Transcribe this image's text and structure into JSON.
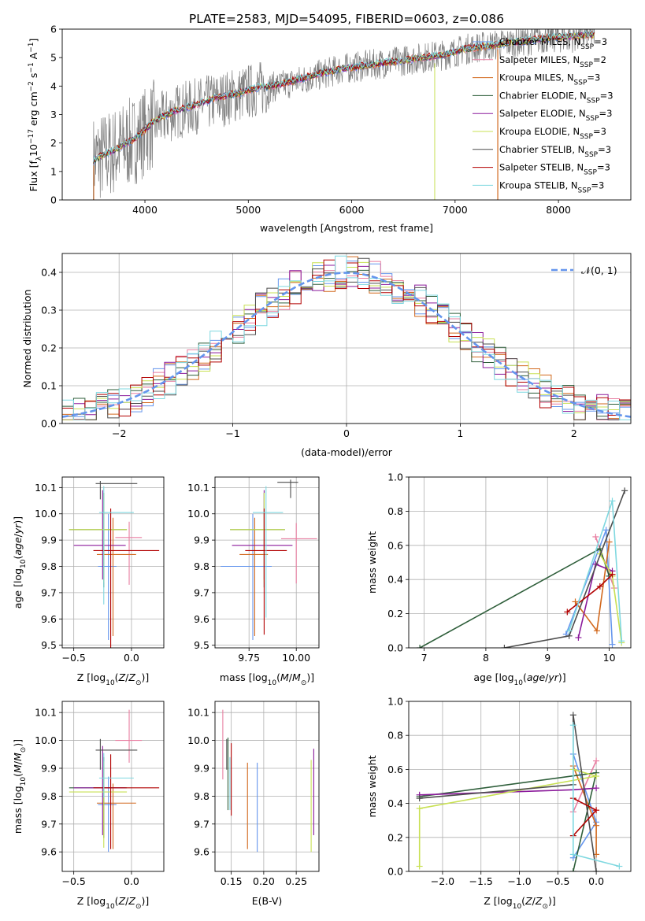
{
  "figure": {
    "title": "PLATE=2583, MJD=54095, FIBERID=0603, z=0.086"
  },
  "colors": {
    "Chabrier MILES": "#6495ed",
    "Salpeter MILES": "#e87ea1",
    "Kroupa MILES": "#d2691e",
    "Chabrier ELODIE": "#2e5e3a",
    "Salpeter ELODIE": "#8b1a9b",
    "Kroupa ELODIE": "#c8e053",
    "Chabrier STELIB": "#4d4d4d",
    "Salpeter STELIB": "#b20000",
    "Kroupa STELIB": "#7fd8e0",
    "data": "#808080"
  },
  "chart_data": [
    {
      "id": "spectrum",
      "type": "line",
      "xlabel": "wavelength [Angstrom, rest frame]",
      "ylabel": "Flux [f_λ10^{-17} erg cm^{-2} s^{-1} A^{-1}]",
      "ylabel_parts": [
        "Flux [f",
        "λ",
        "10",
        "−17",
        " erg cm",
        "−2",
        " s",
        "−1",
        " A",
        "−1",
        "]"
      ],
      "xlim": [
        3200,
        8700
      ],
      "ylim": [
        0,
        6
      ],
      "xticks": [
        4000,
        5000,
        6000,
        7000,
        8000
      ],
      "yticks": [
        0,
        1,
        2,
        3,
        4,
        5,
        6
      ],
      "grid": false,
      "legend_position": "right",
      "legend": [
        {
          "base": "Chabrier MILES, N",
          "sub": "SSP",
          "tail": "=3"
        },
        {
          "base": "Salpeter MILES, N",
          "sub": "SSP",
          "tail": "=2"
        },
        {
          "base": "Kroupa MILES, N",
          "sub": "SSP",
          "tail": "=3"
        },
        {
          "base": "Chabrier ELODIE, N",
          "sub": "SSP",
          "tail": "=3"
        },
        {
          "base": "Salpeter ELODIE, N",
          "sub": "SSP",
          "tail": "=3"
        },
        {
          "base": "Kroupa ELODIE, N",
          "sub": "SSP",
          "tail": "=3"
        },
        {
          "base": "Chabrier STELIB, N",
          "sub": "SSP",
          "tail": "=3"
        },
        {
          "base": "Salpeter STELIB, N",
          "sub": "SSP",
          "tail": "=3"
        },
        {
          "base": "Kroupa STELIB, N",
          "sub": "SSP",
          "tail": "=3"
        }
      ],
      "data_spectrum": {
        "x": [
          3500,
          3700,
          3900,
          4100,
          4300,
          4500,
          4700,
          4900,
          5100,
          5300,
          5500,
          5700,
          5900,
          6100,
          6300,
          6500,
          6700,
          6900,
          7100,
          7300,
          7500,
          7700,
          7900,
          8100,
          8300
        ],
        "y": [
          1.4,
          1.7,
          2.1,
          2.7,
          3.1,
          3.3,
          3.5,
          3.7,
          3.9,
          4.0,
          4.2,
          4.4,
          4.6,
          4.7,
          4.8,
          4.9,
          5.0,
          5.1,
          5.3,
          5.4,
          5.5,
          5.6,
          5.7,
          5.7,
          5.8
        ]
      },
      "model_spectrum": {
        "x": [
          3500,
          3700,
          3900,
          4100,
          4300,
          4500,
          4700,
          4900,
          5100,
          5300,
          5500,
          5700,
          5900,
          6100,
          6300,
          6500,
          6700,
          6900,
          7100,
          7300,
          7500,
          7700,
          7900,
          8100,
          8300
        ],
        "y": [
          1.4,
          1.75,
          2.15,
          2.8,
          3.15,
          3.35,
          3.6,
          3.75,
          3.95,
          4.05,
          4.25,
          4.45,
          4.6,
          4.7,
          4.8,
          4.9,
          5.0,
          5.1,
          5.3,
          5.4,
          5.5,
          5.6,
          5.7,
          5.75,
          5.8
        ]
      }
    },
    {
      "id": "residuals",
      "type": "line",
      "xlabel": "(data-model)/error",
      "ylabel": "Normed distribution",
      "xlim": [
        -2.5,
        2.5
      ],
      "ylim": [
        0,
        0.45
      ],
      "xticks": [
        -2,
        -1,
        0,
        1,
        2
      ],
      "yticks": [
        0.0,
        0.1,
        0.2,
        0.3,
        0.4
      ],
      "grid": true,
      "legend_position": "top-right",
      "legend": [
        "𝒩(0, 1)"
      ],
      "bin_width": 0.1
    },
    {
      "id": "age_vs_Z",
      "type": "scatter",
      "xlabel": "Z [log10(Z/Z⊙)]",
      "ylabel": "age  [log10(age/yr)]",
      "xlim": [
        -0.6,
        0.28
      ],
      "ylim": [
        9.49,
        10.14
      ],
      "xticks": [
        -0.5,
        0.0
      ],
      "yticks": [
        9.5,
        9.6,
        9.7,
        9.8,
        9.9,
        10.0,
        10.1
      ],
      "grid": true,
      "points": [
        {
          "model": "Chabrier MILES",
          "x": -0.2,
          "y": 9.8,
          "xerr": [
            0.09,
            0.07
          ],
          "yerr": [
            0.28,
            0.2
          ]
        },
        {
          "model": "Salpeter MILES",
          "x": -0.02,
          "y": 9.91,
          "xerr": [
            0.12,
            0.11
          ],
          "yerr": [
            0.18,
            0.06
          ]
        },
        {
          "model": "Kroupa MILES",
          "x": -0.16,
          "y": 9.845,
          "xerr": [
            0.14,
            0.2
          ],
          "yerr": [
            0.31,
            0.14
          ]
        },
        {
          "model": "Chabrier ELODIE",
          "x": -0.24,
          "y": 9.94,
          "xerr": [
            0.3,
            0.2
          ],
          "yerr": [
            0.22,
            0.14
          ]
        },
        {
          "model": "Salpeter ELODIE",
          "x": -0.25,
          "y": 9.88,
          "xerr": [
            0.25,
            0.2
          ],
          "yerr": [
            0.13,
            0.21
          ]
        },
        {
          "model": "Kroupa ELODIE",
          "x": -0.24,
          "y": 9.94,
          "xerr": [
            0.3,
            0.2
          ],
          "yerr": [
            0.2,
            0.14
          ]
        },
        {
          "model": "Chabrier STELIB",
          "x": -0.27,
          "y": 10.115,
          "xerr": [
            0.04,
            0.32
          ],
          "yerr": [
            0.06,
            0.01
          ]
        },
        {
          "model": "Salpeter STELIB",
          "x": -0.18,
          "y": 9.86,
          "xerr": [
            0.15,
            0.42
          ],
          "yerr": [
            0.38,
            0.16
          ]
        },
        {
          "model": "Kroupa STELIB",
          "x": -0.24,
          "y": 10.005,
          "xerr": [
            0.04,
            0.26
          ],
          "yerr": [
            0.35,
            0.1
          ]
        }
      ]
    },
    {
      "id": "age_vs_mass",
      "type": "scatter",
      "xlabel": "mass [log10(M/M⊙)]",
      "ylabel": "",
      "xlim": [
        9.57,
        10.12
      ],
      "ylim": [
        9.49,
        10.14
      ],
      "xticks": [
        9.75,
        10.0
      ],
      "yticks": [
        9.5,
        9.6,
        9.7,
        9.8,
        9.9,
        10.0,
        10.1
      ],
      "grid": true,
      "points": [
        {
          "model": "Chabrier MILES",
          "x": 9.77,
          "y": 9.8,
          "xerr": [
            0.17,
            0.1
          ],
          "yerr": [
            0.28,
            0.2
          ]
        },
        {
          "model": "Salpeter MILES",
          "x": 10.0,
          "y": 9.905,
          "xerr": [
            0.08,
            0.11
          ],
          "yerr": [
            0.17,
            0.06
          ]
        },
        {
          "model": "Kroupa MILES",
          "x": 9.78,
          "y": 9.845,
          "xerr": [
            0.08,
            0.07
          ],
          "yerr": [
            0.31,
            0.14
          ]
        },
        {
          "model": "Chabrier ELODIE",
          "x": 9.83,
          "y": 9.94,
          "xerr": [
            0.18,
            0.11
          ],
          "yerr": [
            0.22,
            0.14
          ]
        },
        {
          "model": "Salpeter ELODIE",
          "x": 9.83,
          "y": 9.88,
          "xerr": [
            0.17,
            0.15
          ],
          "yerr": [
            0.13,
            0.21
          ]
        },
        {
          "model": "Kroupa ELODIE",
          "x": 9.83,
          "y": 9.94,
          "xerr": [
            0.18,
            0.11
          ],
          "yerr": [
            0.2,
            0.14
          ]
        },
        {
          "model": "Chabrier STELIB",
          "x": 9.97,
          "y": 10.12,
          "xerr": [
            0.07,
            0.04
          ],
          "yerr": [
            0.06,
            0.01
          ]
        },
        {
          "model": "Salpeter STELIB",
          "x": 9.83,
          "y": 9.86,
          "xerr": [
            0.1,
            0.12
          ],
          "yerr": [
            0.32,
            0.16
          ]
        },
        {
          "model": "Kroupa STELIB",
          "x": 9.84,
          "y": 10.005,
          "xerr": [
            0.07,
            0.09
          ],
          "yerr": [
            0.4,
            0.1
          ]
        }
      ]
    },
    {
      "id": "weight_vs_age",
      "type": "line",
      "xlabel": "age  [log10(age/yr)]",
      "ylabel": "mass weight",
      "xlim": [
        6.75,
        10.35
      ],
      "ylim": [
        0,
        1.0
      ],
      "xticks": [
        7,
        8,
        9,
        10
      ],
      "yticks": [
        0.0,
        0.2,
        0.4,
        0.6,
        0.8,
        1.0
      ],
      "grid": true,
      "series": [
        {
          "model": "Chabrier MILES",
          "x": [
            9.3,
            9.95,
            10.05
          ],
          "y": [
            0.08,
            0.69,
            0.02
          ]
        },
        {
          "model": "Salpeter MILES",
          "x": [
            9.78,
            10.08
          ],
          "y": [
            0.65,
            0.35
          ]
        },
        {
          "model": "Kroupa MILES",
          "x": [
            9.45,
            9.8,
            10.0
          ],
          "y": [
            0.27,
            0.1,
            0.62
          ]
        },
        {
          "model": "Chabrier ELODIE",
          "x": [
            6.93,
            9.85,
            10.0
          ],
          "y": [
            0.0,
            0.58,
            0.42
          ]
        },
        {
          "model": "Salpeter ELODIE",
          "x": [
            9.5,
            9.78,
            10.05
          ],
          "y": [
            0.06,
            0.49,
            0.45
          ]
        },
        {
          "model": "Kroupa ELODIE",
          "x": [
            9.85,
            10.05,
            10.2
          ],
          "y": [
            0.55,
            0.42,
            0.03
          ]
        },
        {
          "model": "Chabrier STELIB",
          "x": [
            8.3,
            9.35,
            10.25
          ],
          "y": [
            0.0,
            0.07,
            0.92
          ]
        },
        {
          "model": "Salpeter STELIB",
          "x": [
            9.32,
            9.85,
            10.05
          ],
          "y": [
            0.21,
            0.36,
            0.43
          ]
        },
        {
          "model": "Kroupa STELIB",
          "x": [
            9.35,
            10.05,
            10.2
          ],
          "y": [
            0.1,
            0.86,
            0.04
          ]
        }
      ]
    },
    {
      "id": "mass_vs_Z",
      "type": "scatter",
      "xlabel": "Z [log10(Z/Z⊙)]",
      "ylabel": "mass [log10(M/M⊙)]",
      "xlim": [
        -0.6,
        0.28
      ],
      "ylim": [
        9.53,
        10.14
      ],
      "xticks": [
        -0.5,
        0.0
      ],
      "yticks": [
        9.6,
        9.7,
        9.8,
        9.9,
        10.0,
        10.1
      ],
      "grid": true,
      "points": [
        {
          "model": "Chabrier MILES",
          "x": -0.2,
          "y": 9.77,
          "xerr": [
            0.09,
            0.07
          ],
          "yerr": [
            0.17,
            0.1
          ]
        },
        {
          "model": "Salpeter MILES",
          "x": -0.02,
          "y": 10.0,
          "xerr": [
            0.12,
            0.11
          ],
          "yerr": [
            0.08,
            0.11
          ]
        },
        {
          "model": "Kroupa MILES",
          "x": -0.16,
          "y": 9.775,
          "xerr": [
            0.14,
            0.2
          ],
          "yerr": [
            0.165,
            0.07
          ]
        },
        {
          "model": "Chabrier ELODIE",
          "x": -0.24,
          "y": 9.83,
          "xerr": [
            0.3,
            0.2
          ],
          "yerr": [
            0.18,
            0.11
          ]
        },
        {
          "model": "Salpeter ELODIE",
          "x": -0.25,
          "y": 9.83,
          "xerr": [
            0.25,
            0.2
          ],
          "yerr": [
            0.17,
            0.15
          ]
        },
        {
          "model": "Kroupa ELODIE",
          "x": -0.24,
          "y": 9.815,
          "xerr": [
            0.3,
            0.2
          ],
          "yerr": [
            0.2,
            0.11
          ]
        },
        {
          "model": "Chabrier STELIB",
          "x": -0.27,
          "y": 9.965,
          "xerr": [
            0.04,
            0.32
          ],
          "yerr": [
            0.07,
            0.04
          ]
        },
        {
          "model": "Salpeter STELIB",
          "x": -0.18,
          "y": 9.83,
          "xerr": [
            0.15,
            0.42
          ],
          "yerr": [
            0.22,
            0.12
          ]
        },
        {
          "model": "Kroupa STELIB",
          "x": -0.24,
          "y": 9.865,
          "xerr": [
            0.04,
            0.26
          ],
          "yerr": [
            0.07,
            0.09
          ]
        }
      ]
    },
    {
      "id": "mass_vs_EBV",
      "type": "scatter",
      "xlabel": "E(B-V)",
      "ylabel": "",
      "xlim": [
        0.125,
        0.285
      ],
      "ylim": [
        9.53,
        10.14
      ],
      "xticks": [
        0.15,
        0.2,
        0.25
      ],
      "yticks": [
        9.6,
        9.7,
        9.8,
        9.9,
        10.0,
        10.1
      ],
      "grid": true,
      "points": [
        {
          "model": "Chabrier MILES",
          "x": 0.19,
          "y": 9.77,
          "yerr": [
            0.17,
            0.15
          ]
        },
        {
          "model": "Salpeter MILES",
          "x": 0.137,
          "y": 9.98,
          "yerr": [
            0.12,
            0.13
          ]
        },
        {
          "model": "Kroupa MILES",
          "x": 0.175,
          "y": 9.77,
          "yerr": [
            0.16,
            0.15
          ]
        },
        {
          "model": "Chabrier ELODIE",
          "x": 0.145,
          "y": 9.87,
          "yerr": [
            0.12,
            0.14
          ]
        },
        {
          "model": "Salpeter ELODIE",
          "x": 0.277,
          "y": 9.83,
          "yerr": [
            0.17,
            0.14
          ]
        },
        {
          "model": "Kroupa ELODIE",
          "x": 0.273,
          "y": 9.8,
          "yerr": [
            0.2,
            0.13
          ]
        },
        {
          "model": "Chabrier STELIB",
          "x": 0.143,
          "y": 9.965,
          "yerr": [
            0.07,
            0.04
          ]
        },
        {
          "model": "Salpeter STELIB",
          "x": 0.15,
          "y": 9.84,
          "yerr": [
            0.11,
            0.15
          ]
        },
        {
          "model": "Kroupa STELIB",
          "x": 0.148,
          "y": 9.85,
          "yerr": [
            0.1,
            0.09
          ]
        }
      ]
    },
    {
      "id": "weight_vs_Z",
      "type": "line",
      "xlabel": "Z [log10(Z/Z⊙)]",
      "ylabel": "mass weight",
      "xlim": [
        -2.44,
        0.45
      ],
      "ylim": [
        0,
        1.0
      ],
      "xticks": [
        -2.0,
        -1.5,
        -1.0,
        -0.5,
        0.0
      ],
      "yticks": [
        0.0,
        0.2,
        0.4,
        0.6,
        0.8,
        1.0
      ],
      "grid": true,
      "series": [
        {
          "model": "Chabrier MILES",
          "x": [
            -0.3,
            0.0,
            -0.3
          ],
          "y": [
            0.69,
            0.29,
            0.08
          ]
        },
        {
          "model": "Salpeter MILES",
          "x": [
            -0.3,
            0.0
          ],
          "y": [
            0.35,
            0.65
          ]
        },
        {
          "model": "Kroupa MILES",
          "x": [
            -0.3,
            0.0,
            0.0
          ],
          "y": [
            0.62,
            0.27,
            0.1
          ]
        },
        {
          "model": "Chabrier ELODIE",
          "x": [
            -2.3,
            0.0,
            -0.3
          ],
          "y": [
            0.44,
            0.58,
            0.0
          ]
        },
        {
          "model": "Salpeter ELODIE",
          "x": [
            -2.3,
            -0.3,
            0.0
          ],
          "y": [
            0.45,
            0.48,
            0.49
          ]
        },
        {
          "model": "Kroupa ELODIE",
          "x": [
            -2.3,
            -2.3,
            0.0,
            -0.3
          ],
          "y": [
            0.03,
            0.37,
            0.56,
            0.6
          ]
        },
        {
          "model": "Chabrier STELIB",
          "x": [
            -2.3,
            -0.3,
            -0.3,
            0.0
          ],
          "y": [
            0.43,
            0.51,
            0.92,
            0.0
          ]
        },
        {
          "model": "Salpeter STELIB",
          "x": [
            -0.3,
            0.0,
            -0.3
          ],
          "y": [
            0.43,
            0.36,
            0.21
          ]
        },
        {
          "model": "Kroupa STELIB",
          "x": [
            -0.3,
            -0.3,
            0.3
          ],
          "y": [
            0.86,
            0.1,
            0.03
          ]
        }
      ]
    }
  ]
}
